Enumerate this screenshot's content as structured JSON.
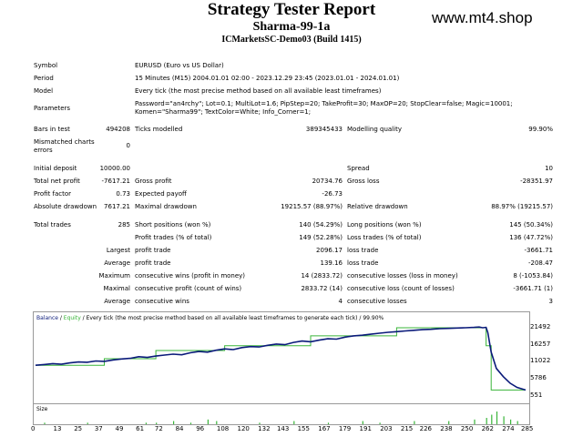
{
  "header": {
    "title": "Strategy Tester Report",
    "ea_name": "Sharma-99-1a",
    "server": "ICMarketsSC-Demo03 (Build 1415)",
    "site": "www.mt4.shop"
  },
  "info": {
    "symbol_label": "Symbol",
    "symbol": "EURUSD (Euro vs US Dollar)",
    "period_label": "Period",
    "period": "15 Minutes (M15) 2004.01.01 02:00 - 2023.12.29 23:45 (2023.01.01 - 2024.01.01)",
    "model_label": "Model",
    "model": "Every tick (the most precise method based on all available least timeframes)",
    "parameters_label": "Parameters",
    "parameters_line1": "Password=\"an4rchy\"; Lot=0.1; MultiLot=1.6; PipStep=20; TakeProfit=30; MaxOP=20; StopClear=false; Magic=10001;",
    "parameters_line2": "Komen=\"Sharma99\"; TextColor=White; Info_Corner=1;",
    "bars_label": "Bars in test",
    "bars": "494208",
    "ticks_label": "Ticks modelled",
    "ticks": "389345433",
    "quality_label": "Modelling quality",
    "quality": "99.90%",
    "mismatch_label_1": "Mismatched charts",
    "mismatch_label_2": "errors",
    "mismatch": "0"
  },
  "summary": {
    "initial_deposit_label": "Initial deposit",
    "initial_deposit": "10000.00",
    "spread_label": "Spread",
    "spread": "10",
    "net_profit_label": "Total net profit",
    "net_profit": "-7617.21",
    "gross_profit_label": "Gross profit",
    "gross_profit": "20734.76",
    "gross_loss_label": "Gross loss",
    "gross_loss": "-28351.97",
    "profit_factor_label": "Profit factor",
    "profit_factor": "0.73",
    "expected_payoff_label": "Expected payoff",
    "expected_payoff": "-26.73",
    "abs_dd_label": "Absolute drawdown",
    "abs_dd": "7617.21",
    "max_dd_label": "Maximal drawdown",
    "max_dd": "19215.57 (88.97%)",
    "rel_dd_label": "Relative drawdown",
    "rel_dd": "88.97% (19215.57)"
  },
  "trades": {
    "total_label": "Total trades",
    "total": "285",
    "short_label": "Short positions (won %)",
    "short": "140 (54.29%)",
    "long_label": "Long positions (won %)",
    "long": "145 (50.34%)",
    "profit_trades_label": "Profit trades (% of total)",
    "profit_trades": "149 (52.28%)",
    "loss_trades_label": "Loss trades (% of total)",
    "loss_trades": "136 (47.72%)",
    "largest": "Largest",
    "average": "Average",
    "maximum": "Maximum",
    "maximal": "Maximal",
    "profit_trade_label": "profit trade",
    "loss_trade_label": "loss trade",
    "largest_profit": "2096.17",
    "largest_loss": "-3661.71",
    "average_profit": "139.16",
    "average_loss": "-208.47",
    "cons_wins_money_label": "consecutive wins (profit in money)",
    "cons_wins_money": "14 (2833.72)",
    "cons_losses_money_label": "consecutive losses (loss in money)",
    "cons_losses_money": "8 (-1053.84)",
    "cons_profit_count_label": "consecutive profit (count of wins)",
    "cons_profit_count": "2833.72 (14)",
    "cons_loss_count_label": "consecutive loss (count of losses)",
    "cons_loss_count": "-3661.71 (1)",
    "avg_cons_wins_label": "consecutive wins",
    "avg_cons_wins": "4",
    "avg_cons_losses_label": "consecutive losses",
    "avg_cons_losses": "3"
  },
  "chart_legend": {
    "balance": "Balance",
    "sep1": " / ",
    "equity": "Equity",
    "sep2": " / ",
    "rest": "Every tick (the most precise method based on all available least timeframes to generate each tick) / 99.90%"
  },
  "colors": {
    "balance": "#0a1a7a",
    "equity": "#3ab53a",
    "size_bars": "#3ab53a"
  },
  "chart_data": {
    "type": "line",
    "ylim": [
      551,
      24000
    ],
    "y_ticks": [
      "21492",
      "16257",
      "11022",
      "5786",
      "551"
    ],
    "x_ticks": [
      "0",
      "13",
      "25",
      "37",
      "49",
      "61",
      "72",
      "84",
      "96",
      "108",
      "120",
      "132",
      "143",
      "155",
      "167",
      "179",
      "191",
      "203",
      "215",
      "226",
      "238",
      "250",
      "262",
      "274",
      "285"
    ],
    "size_label": "Size",
    "series": [
      {
        "name": "Balance",
        "x": [
          0,
          5,
          10,
          15,
          20,
          25,
          30,
          35,
          40,
          45,
          50,
          55,
          60,
          65,
          70,
          75,
          80,
          85,
          90,
          95,
          100,
          105,
          110,
          115,
          120,
          125,
          130,
          135,
          140,
          145,
          150,
          155,
          160,
          165,
          170,
          175,
          180,
          185,
          190,
          195,
          200,
          205,
          210,
          215,
          220,
          225,
          230,
          235,
          240,
          245,
          250,
          255,
          258,
          260,
          262,
          263,
          265,
          268,
          272,
          276,
          280,
          285
        ],
        "y": [
          10000,
          10200,
          10500,
          10300,
          10700,
          11000,
          10900,
          11300,
          11200,
          11600,
          11900,
          12100,
          12600,
          12400,
          12800,
          13100,
          13400,
          13200,
          13800,
          14200,
          14000,
          14600,
          15000,
          14800,
          15400,
          15700,
          15600,
          16100,
          16500,
          16300,
          17000,
          17400,
          17200,
          17700,
          18100,
          18000,
          18600,
          19000,
          19200,
          19500,
          19800,
          20100,
          20300,
          20500,
          20700,
          20900,
          21000,
          21200,
          21300,
          21400,
          21500,
          21600,
          21700,
          21500,
          21600,
          20000,
          14000,
          9000,
          6500,
          4500,
          3200,
          2383
        ]
      },
      {
        "name": "Equity",
        "x": [
          0,
          40,
          40,
          70,
          70,
          110,
          110,
          160,
          160,
          210,
          210,
          262,
          262,
          265,
          265,
          285
        ],
        "y": [
          10000,
          10000,
          12000,
          12000,
          14500,
          14500,
          16000,
          16000,
          19000,
          19000,
          21500,
          21500,
          16000,
          16000,
          2383,
          2383
        ]
      }
    ],
    "size_bars": [
      {
        "x": 5,
        "v": 1
      },
      {
        "x": 30,
        "v": 1
      },
      {
        "x": 64,
        "v": 1
      },
      {
        "x": 70,
        "v": 1
      },
      {
        "x": 80,
        "v": 2
      },
      {
        "x": 90,
        "v": 1
      },
      {
        "x": 100,
        "v": 3
      },
      {
        "x": 105,
        "v": 2
      },
      {
        "x": 130,
        "v": 1
      },
      {
        "x": 150,
        "v": 2
      },
      {
        "x": 170,
        "v": 1
      },
      {
        "x": 190,
        "v": 2
      },
      {
        "x": 200,
        "v": 1
      },
      {
        "x": 220,
        "v": 2
      },
      {
        "x": 240,
        "v": 2
      },
      {
        "x": 255,
        "v": 3
      },
      {
        "x": 262,
        "v": 4
      },
      {
        "x": 265,
        "v": 6
      },
      {
        "x": 268,
        "v": 8
      },
      {
        "x": 272,
        "v": 5
      },
      {
        "x": 276,
        "v": 3
      },
      {
        "x": 280,
        "v": 2
      }
    ]
  }
}
